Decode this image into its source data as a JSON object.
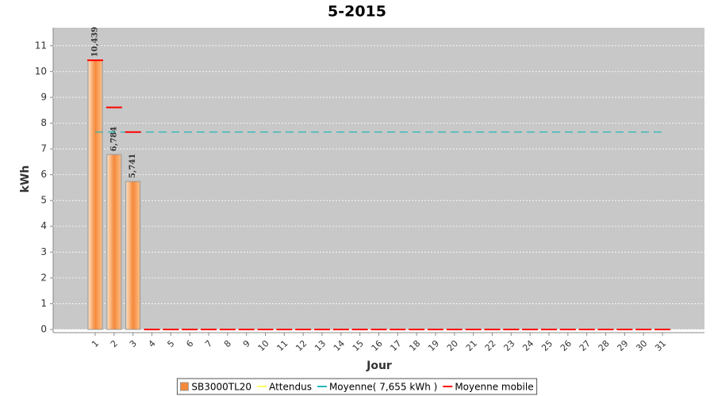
{
  "chart_data": {
    "type": "bar",
    "title": "5-2015",
    "x_label": "Jour",
    "y_label": "kWh",
    "categories": [
      "1",
      "2",
      "3",
      "4",
      "5",
      "6",
      "7",
      "8",
      "9",
      "10",
      "11",
      "12",
      "13",
      "14",
      "15",
      "16",
      "17",
      "18",
      "19",
      "20",
      "21",
      "22",
      "23",
      "24",
      "25",
      "26",
      "27",
      "28",
      "29",
      "30",
      "31"
    ],
    "series": [
      {
        "name": "SB3000TL20",
        "type": "bar",
        "color": "#f5893a",
        "values": [
          10.439,
          6.784,
          5.741,
          0,
          0,
          0,
          0,
          0,
          0,
          0,
          0,
          0,
          0,
          0,
          0,
          0,
          0,
          0,
          0,
          0,
          0,
          0,
          0,
          0,
          0,
          0,
          0,
          0,
          0,
          0,
          0
        ],
        "value_labels": [
          "10,439",
          "6,784",
          "5,741",
          null,
          null,
          null,
          null,
          null,
          null,
          null,
          null,
          null,
          null,
          null,
          null,
          null,
          null,
          null,
          null,
          null,
          null,
          null,
          null,
          null,
          null,
          null,
          null,
          null,
          null,
          null,
          null
        ]
      },
      {
        "name": "Attendus",
        "type": "line",
        "color": "#ffff66",
        "values": [
          null,
          null,
          null,
          null,
          null,
          null,
          null,
          null,
          null,
          null,
          null,
          null,
          null,
          null,
          null,
          null,
          null,
          null,
          null,
          null,
          null,
          null,
          null,
          null,
          null,
          null,
          null,
          null,
          null,
          null,
          null
        ]
      },
      {
        "name": "Moyenne( 7,655 kWh )",
        "type": "line",
        "color": "#22b8b8",
        "values": [
          7.655,
          7.655,
          7.655,
          7.655,
          7.655,
          7.655,
          7.655,
          7.655,
          7.655,
          7.655,
          7.655,
          7.655,
          7.655,
          7.655,
          7.655,
          7.655,
          7.655,
          7.655,
          7.655,
          7.655,
          7.655,
          7.655,
          7.655,
          7.655,
          7.655,
          7.655,
          7.655,
          7.655,
          7.655,
          7.655,
          7.655
        ]
      },
      {
        "name": "Moyenne mobile",
        "type": "marker",
        "color": "#ff0000",
        "values": [
          10.439,
          8.61,
          7.655,
          0,
          0,
          0,
          0,
          0,
          0,
          0,
          0,
          0,
          0,
          0,
          0,
          0,
          0,
          0,
          0,
          0,
          0,
          0,
          0,
          0,
          0,
          0,
          0,
          0,
          0,
          0,
          0
        ]
      }
    ],
    "ylim": [
      0,
      11.7
    ],
    "yticks": [
      0,
      1,
      2,
      3,
      4,
      5,
      6,
      7,
      8,
      9,
      10,
      11
    ],
    "grid": true
  }
}
